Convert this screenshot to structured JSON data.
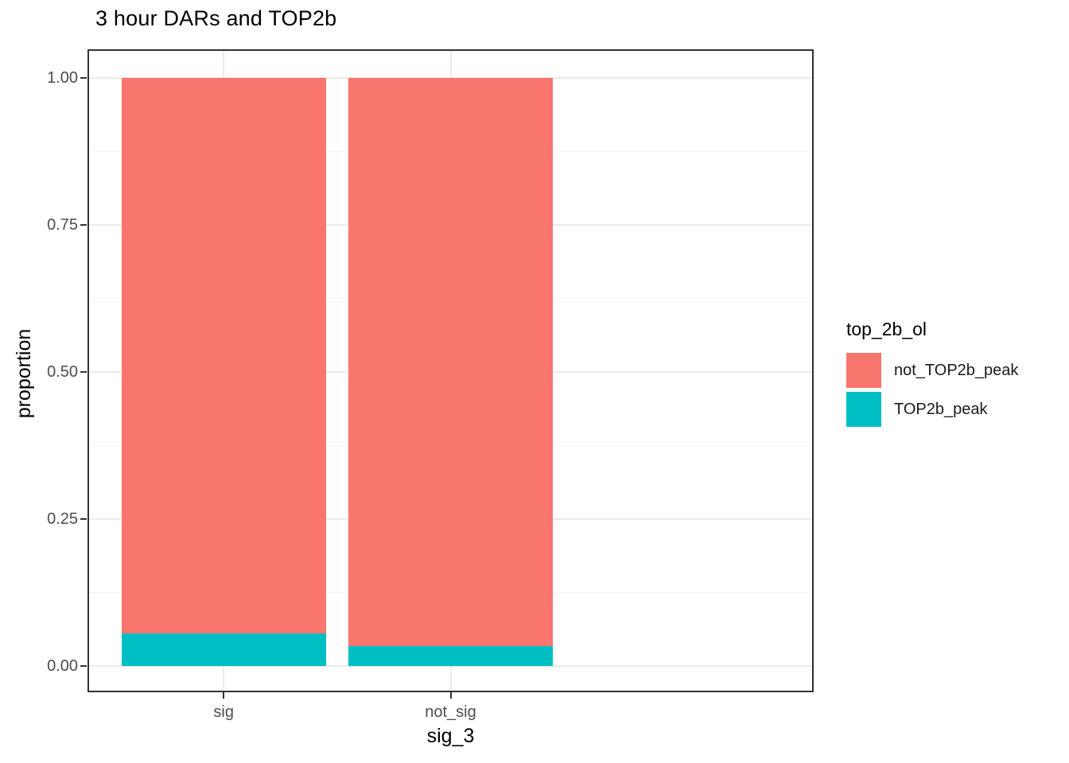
{
  "title": "3 hour DARs and TOP2b",
  "chart_data": {
    "type": "bar",
    "stacked": true,
    "orientation": "vertical",
    "title": "3 hour DARs and TOP2b",
    "xlabel": "sig_3",
    "ylabel": "proportion",
    "categories": [
      "sig",
      "not_sig"
    ],
    "series": [
      {
        "name": "not_TOP2b_peak",
        "color": "#F8766D",
        "values": [
          0.945,
          0.966
        ]
      },
      {
        "name": "TOP2b_peak",
        "color": "#00BFC4",
        "values": [
          0.055,
          0.034
        ]
      }
    ],
    "ylim": [
      0,
      1
    ],
    "yticks": [
      {
        "value": 0.0,
        "label": "0.00"
      },
      {
        "value": 0.25,
        "label": "0.25"
      },
      {
        "value": 0.5,
        "label": "0.50"
      },
      {
        "value": 0.75,
        "label": "0.75"
      },
      {
        "value": 1.0,
        "label": "1.00"
      }
    ],
    "minor_gridlines": [
      0.125,
      0.375,
      0.625,
      0.875
    ],
    "grid": true,
    "legend": {
      "title": "top_2b_ol",
      "position": "right",
      "entries": [
        "not_TOP2b_peak",
        "TOP2b_peak"
      ]
    },
    "colors": {
      "grid_major": "#EBEBEB",
      "grid_minor": "#F4F4F4",
      "panel_border": "#333333",
      "axis_text": "#4D4D4D",
      "title_text": "#000000"
    }
  }
}
